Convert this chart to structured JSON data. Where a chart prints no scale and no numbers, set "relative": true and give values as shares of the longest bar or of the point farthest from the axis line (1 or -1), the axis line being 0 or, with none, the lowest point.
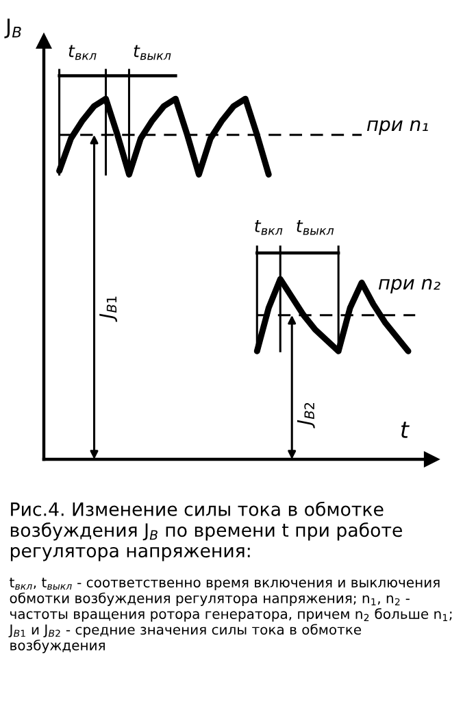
{
  "chart_data": {
    "type": "line",
    "relative": true,
    "tick_labels": false,
    "legend": false,
    "marker": "none",
    "line_style": "solid",
    "title": "Рис.4. Изменение силы тока в обмотке возбуждения J$_{В}$ по времени t при работе регулятора напряжения:",
    "xlabel": "t",
    "ylabel": "J$_{В}$",
    "categories": [
      null,
      null,
      null,
      null,
      null,
      null,
      null,
      null,
      null,
      null,
      null,
      null,
      null,
      null,
      null,
      null,
      null,
      null,
      null,
      null,
      null,
      null,
      null,
      null,
      null,
      null,
      null,
      null,
      null,
      null,
      null
    ],
    "series": [
      {
        "color": "#000000",
        "values": [
          0.8,
          0.89,
          0.94,
          0.98,
          1.0,
          0.9,
          0.79,
          0.89,
          0.94,
          0.98,
          1.0,
          0.9,
          0.79,
          0.89,
          0.94,
          0.98,
          1.0,
          0.9,
          0.79,
          null,
          null,
          null,
          null,
          null,
          null,
          null,
          null,
          null,
          null,
          null,
          null
        ]
      },
      {
        "color": "#000000",
        "values": [
          null,
          null,
          null,
          null,
          null,
          null,
          null,
          null,
          null,
          null,
          null,
          null,
          null,
          null,
          null,
          null,
          null,
          0.3,
          0.42,
          0.5,
          0.45,
          0.4,
          0.36,
          0.33,
          0.3,
          0.42,
          0.49,
          0.43,
          0.38,
          0.34,
          0.3
        ]
      }
    ],
    "ref_lines": [
      {
        "axis": "y",
        "value": 0.9,
        "label": "при n₁",
        "line_style": "dashed",
        "color": "#000000"
      },
      {
        "axis": "y",
        "value": 0.4,
        "label": "при n₂",
        "line_style": "dashed",
        "color": "#000000"
      }
    ],
    "annotations": [
      "t$_{вкл}$",
      "t$_{выкл}$",
      "t$_{вкл}$",
      "t$_{выкл}$",
      "J$_{В1}$",
      "J$_{В2}$",
      "t$_{вкл}$, t$_{выкл}$ - соответственно время включения и выключения обмотки возбуждения регулятора напряжения; n$_{1}$, n$_{2}$ - частоты вращения ротора генератора, причем n$_{2}$ больше n$_{1}$; J$_{В1}$ и J$_{В2}$ - средние значения силы тока в обмотке возбуждения"
    ]
  }
}
